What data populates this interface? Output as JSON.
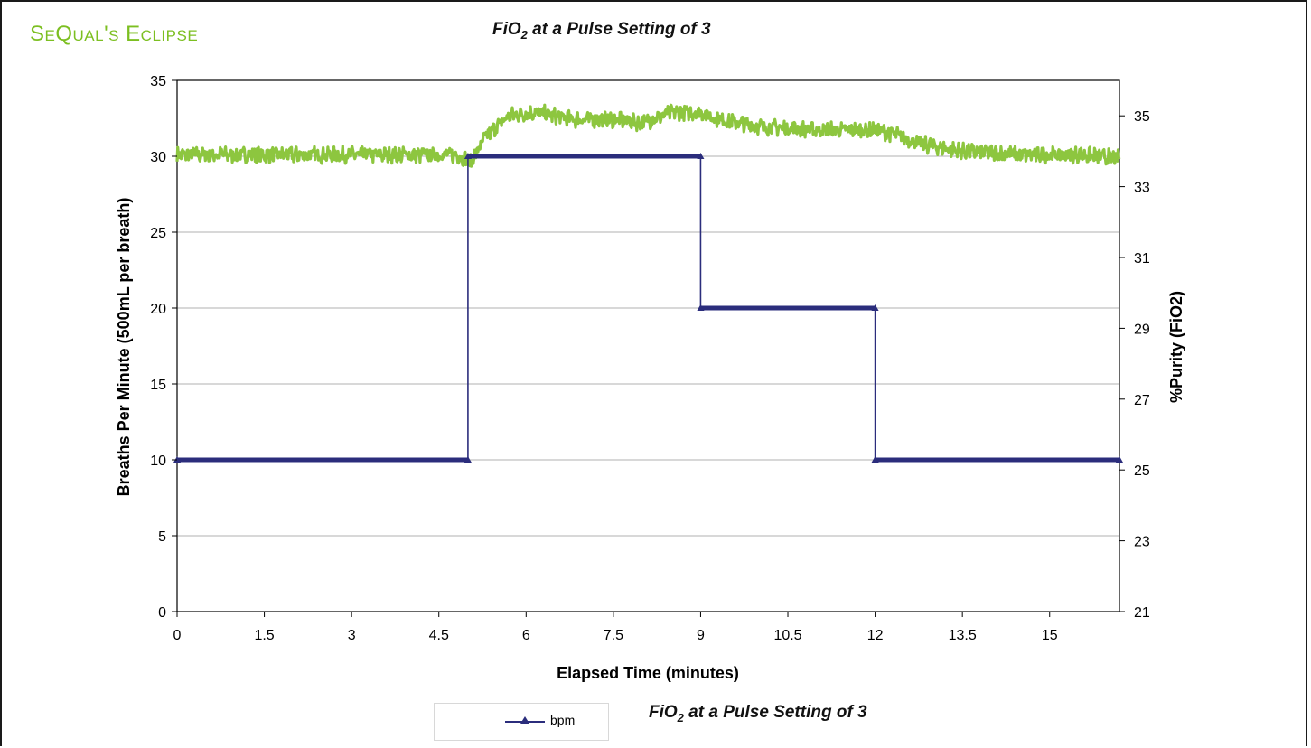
{
  "header": {
    "brand": "SeQual's Eclipse",
    "title_main": "FiO",
    "title_sub": "2",
    "title_rest": " at a Pulse Setting of 3"
  },
  "legend": {
    "series_label": "bpm",
    "title_main": "FiO",
    "title_sub": "2",
    "title_rest": " at a Pulse Setting of 3"
  },
  "colors": {
    "bpm_line": "#2b2d7c",
    "fio2_line": "#8dc63f",
    "brand": "#7cbf21",
    "grid": "#b0b0b0"
  },
  "chart_data": {
    "type": "line",
    "title": "FiO2 at a Pulse Setting of 3",
    "xlabel": "Elapsed Time (minutes)",
    "ylabel": "Breaths Per Minute (500mL per breath)",
    "y2label": "%Purity (FiO2)",
    "xlim": [
      0,
      16.2
    ],
    "ylim": [
      0,
      35
    ],
    "y2lim": [
      21,
      36
    ],
    "x_ticks": [
      "0",
      "1.5",
      "3",
      "4.5",
      "6",
      "7.5",
      "9",
      "10.5",
      "12",
      "13.5",
      "15"
    ],
    "y_ticks": [
      "0",
      "5",
      "10",
      "15",
      "20",
      "25",
      "30",
      "35"
    ],
    "y2_ticks": [
      "21",
      "23",
      "25",
      "27",
      "29",
      "31",
      "33",
      "35"
    ],
    "grid": "horizontal",
    "legend_position": "bottom",
    "series": [
      {
        "name": "bpm",
        "axis": "left",
        "step": true,
        "x": [
          0,
          5,
          5,
          9,
          9,
          12,
          12,
          16.2
        ],
        "values": [
          10,
          10,
          30,
          30,
          20,
          20,
          10,
          10
        ]
      },
      {
        "axis": "right",
        "noisy": true,
        "x": [
          0,
          1,
          2,
          3,
          4,
          4.8,
          5.05,
          5.3,
          5.7,
          6.2,
          6.8,
          7.5,
          8.0,
          8.5,
          9.0,
          9.3,
          10.0,
          11.0,
          12.0,
          12.3,
          12.8,
          13.5,
          14.5,
          15.5,
          16.2
        ],
        "values": [
          33.9,
          33.9,
          33.9,
          33.9,
          33.9,
          33.9,
          33.7,
          34.4,
          35.0,
          35.1,
          34.9,
          34.9,
          34.8,
          35.1,
          35.1,
          34.9,
          34.7,
          34.6,
          34.6,
          34.5,
          34.2,
          34.0,
          33.9,
          33.9,
          33.8
        ]
      }
    ]
  }
}
